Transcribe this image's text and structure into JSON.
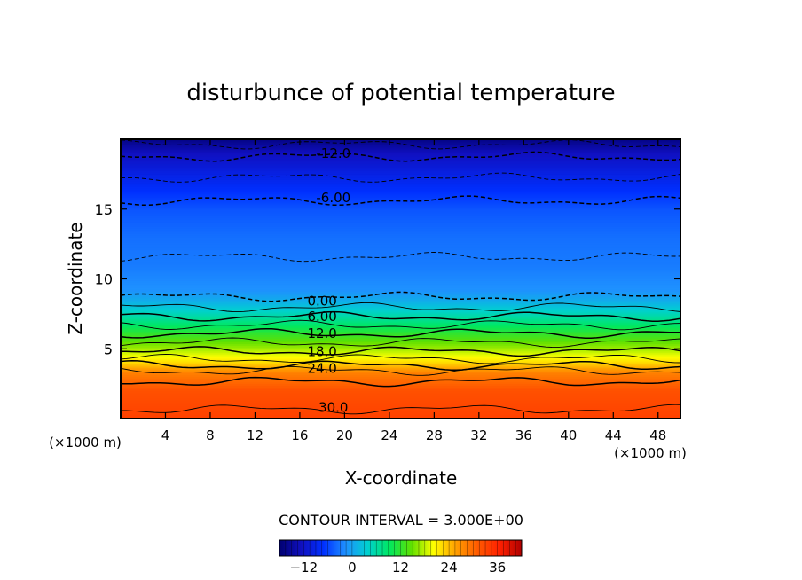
{
  "chart_data": {
    "type": "heatmap",
    "title": "disturbunce of potential temperature",
    "xlabel": "X-coordinate",
    "ylabel": "Z-coordinate",
    "x_unit_label": "(×1000 m)",
    "y_unit_label": "(×1000 m)",
    "xlim": [
      0,
      50
    ],
    "ylim": [
      0,
      20
    ],
    "x_ticks": [
      4,
      8,
      12,
      16,
      20,
      24,
      28,
      32,
      36,
      40,
      44,
      48
    ],
    "y_ticks": [
      5,
      10,
      15
    ],
    "contour_interval_label": "CONTOUR INTERVAL = 3.000E+00",
    "contour_interval": 3.0,
    "colorbar": {
      "range": [
        -18,
        42
      ],
      "ticks": [
        -12,
        0,
        12,
        24,
        36
      ],
      "tick_labels": [
        "−12",
        "0",
        "12",
        "24",
        "36"
      ]
    },
    "contour_labels": [
      {
        "text": "-12.0",
        "x": 19,
        "y": 19.0
      },
      {
        "text": "-6.00",
        "x": 19,
        "y": 15.8
      },
      {
        "text": "0.00",
        "x": 18,
        "y": 8.4
      },
      {
        "text": "6.00",
        "x": 18,
        "y": 7.3
      },
      {
        "text": "12.0",
        "x": 18,
        "y": 6.1
      },
      {
        "text": "18.0",
        "x": 18,
        "y": 4.8
      },
      {
        "text": "24.0",
        "x": 18,
        "y": 3.6
      },
      {
        "text": "30.0",
        "x": 19,
        "y": 0.8
      }
    ],
    "profile": [
      {
        "z": 0.0,
        "value": 33.5
      },
      {
        "z": 2.0,
        "value": 32.0
      },
      {
        "z": 3.3,
        "value": 28.0
      },
      {
        "z": 4.0,
        "value": 22.5
      },
      {
        "z": 5.0,
        "value": 17.0
      },
      {
        "z": 6.0,
        "value": 12.5
      },
      {
        "z": 7.2,
        "value": 6.5
      },
      {
        "z": 8.4,
        "value": 1.0
      },
      {
        "z": 9.2,
        "value": -1.5
      },
      {
        "z": 11.0,
        "value": -2.8
      },
      {
        "z": 13.0,
        "value": -3.5
      },
      {
        "z": 15.0,
        "value": -5.0
      },
      {
        "z": 16.5,
        "value": -7.5
      },
      {
        "z": 17.5,
        "value": -9.5
      },
      {
        "z": 19.0,
        "value": -12.5
      },
      {
        "z": 20.0,
        "value": -16.5
      }
    ],
    "colors": [
      "#000070",
      "#1010c0",
      "#0030ff",
      "#1e90ff",
      "#00d0d0",
      "#00e860",
      "#60e000",
      "#ffff00",
      "#ffa000",
      "#ff5a00",
      "#ff2000",
      "#b00000"
    ]
  }
}
